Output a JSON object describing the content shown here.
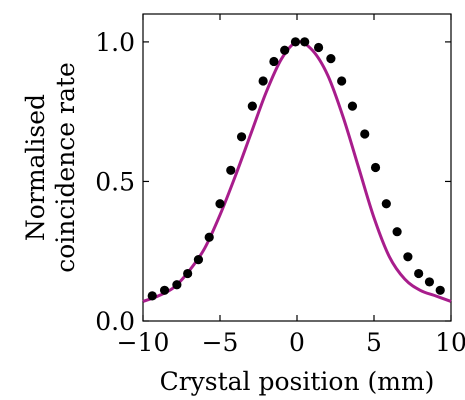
{
  "chart_data": {
    "type": "scatter",
    "title": "",
    "xlabel": "Crystal position (mm)",
    "ylabel_lines": [
      "Normalised",
      "coincidence rate"
    ],
    "xlim": [
      -10,
      10
    ],
    "ylim": [
      0,
      1.1
    ],
    "xticks": [
      -10,
      -5,
      0,
      5,
      10
    ],
    "xtick_labels": [
      "−10",
      "−5",
      "0",
      "5",
      "10"
    ],
    "yticks": [
      0.0,
      0.5,
      1.0
    ],
    "ytick_labels": [
      "0.0",
      "0.5",
      "1.0"
    ],
    "grid": false,
    "series": [
      {
        "kind": "points",
        "color": "#000000",
        "x": [
          -9.4,
          -8.6,
          -7.8,
          -7.1,
          -6.4,
          -5.7,
          -5.0,
          -4.3,
          -3.6,
          -2.9,
          -2.2,
          -1.5,
          -0.8,
          -0.1,
          0.5,
          1.4,
          2.2,
          2.9,
          3.6,
          4.4,
          5.1,
          5.8,
          6.5,
          7.2,
          7.9,
          8.6,
          9.3
        ],
        "y": [
          0.09,
          0.11,
          0.13,
          0.17,
          0.22,
          0.3,
          0.42,
          0.54,
          0.66,
          0.77,
          0.86,
          0.93,
          0.97,
          1.0,
          1.0,
          0.98,
          0.94,
          0.86,
          0.77,
          0.67,
          0.55,
          0.42,
          0.32,
          0.23,
          0.17,
          0.14,
          0.11
        ]
      },
      {
        "kind": "curve",
        "color": "#a81d8c",
        "x": [
          -10,
          -9,
          -8,
          -7,
          -6,
          -5,
          -4,
          -3,
          -2,
          -1,
          0,
          1,
          2,
          3,
          4,
          5,
          6,
          7,
          8,
          9,
          10
        ],
        "y": [
          0.07,
          0.09,
          0.12,
          0.18,
          0.26,
          0.38,
          0.52,
          0.67,
          0.82,
          0.94,
          1.0,
          0.97,
          0.88,
          0.73,
          0.55,
          0.37,
          0.23,
          0.15,
          0.11,
          0.09,
          0.07
        ]
      }
    ]
  }
}
